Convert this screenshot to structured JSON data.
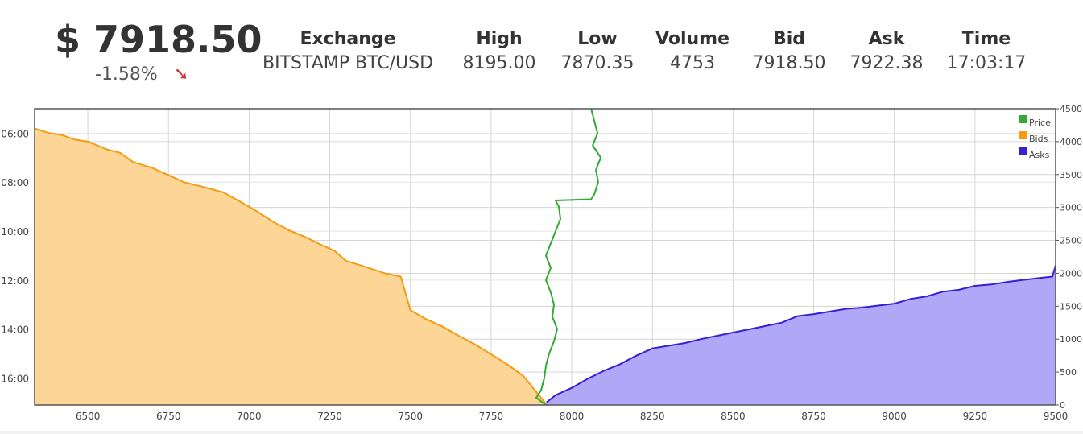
{
  "ticker": {
    "price": "$ 7918.50",
    "change": "-1.58%",
    "trend_icon": "down-arrow-icon",
    "trend_color": "#d0312d"
  },
  "stats": [
    {
      "label": "Exchange",
      "value": "BITSTAMP BTC/USD"
    },
    {
      "label": "High",
      "value": "8195.00"
    },
    {
      "label": "Low",
      "value": "7870.35"
    },
    {
      "label": "Volume",
      "value": "4753"
    },
    {
      "label": "Bid",
      "value": "7918.50"
    },
    {
      "label": "Ask",
      "value": "7922.38"
    },
    {
      "label": "Time",
      "value": "17:03:17"
    }
  ],
  "chart_data": {
    "type": "area",
    "x_axis": {
      "label": "",
      "min": 6335,
      "max": 9500,
      "ticks": [
        6500,
        6750,
        7000,
        7250,
        7500,
        7750,
        8000,
        8250,
        8500,
        8750,
        9000,
        9250,
        9500
      ]
    },
    "right_axis": {
      "label": "",
      "min": 0,
      "max": 4500,
      "ticks": [
        0,
        500,
        1000,
        1500,
        2000,
        2500,
        3000,
        3500,
        4000,
        4500
      ]
    },
    "left_axis": {
      "label": "",
      "time_min_hours": 5.0,
      "time_max_hours": 17.1,
      "ticks": [
        "06:00",
        "08:00",
        "10:00",
        "12:00",
        "14:00",
        "16:00"
      ],
      "tick_hours": [
        6,
        8,
        10,
        12,
        14,
        16
      ]
    },
    "grid": true,
    "legend": {
      "position": "top-right",
      "items": [
        {
          "name": "Price",
          "color": "#33aa33"
        },
        {
          "name": "Bids",
          "color": "#f39c12"
        },
        {
          "name": "Asks",
          "color": "#3a1fd6"
        }
      ]
    },
    "series": [
      {
        "name": "Bids",
        "color": "#f39c12",
        "fill": "#fdd597",
        "axis": "right",
        "points": [
          [
            6335,
            4200
          ],
          [
            6380,
            4130
          ],
          [
            6420,
            4100
          ],
          [
            6460,
            4030
          ],
          [
            6500,
            4000
          ],
          [
            6560,
            3880
          ],
          [
            6600,
            3830
          ],
          [
            6640,
            3690
          ],
          [
            6700,
            3600
          ],
          [
            6750,
            3490
          ],
          [
            6800,
            3380
          ],
          [
            6860,
            3310
          ],
          [
            6920,
            3230
          ],
          [
            6975,
            3080
          ],
          [
            7025,
            2940
          ],
          [
            7075,
            2780
          ],
          [
            7125,
            2650
          ],
          [
            7175,
            2550
          ],
          [
            7220,
            2440
          ],
          [
            7265,
            2340
          ],
          [
            7300,
            2190
          ],
          [
            7360,
            2100
          ],
          [
            7420,
            2000
          ],
          [
            7470,
            1950
          ],
          [
            7500,
            1440
          ],
          [
            7550,
            1300
          ],
          [
            7600,
            1190
          ],
          [
            7650,
            1050
          ],
          [
            7700,
            920
          ],
          [
            7750,
            770
          ],
          [
            7800,
            620
          ],
          [
            7850,
            440
          ],
          [
            7918,
            30
          ]
        ]
      },
      {
        "name": "Asks",
        "color": "#3a1fd6",
        "fill": "#b1a7f7",
        "axis": "right",
        "points": [
          [
            7922,
            40
          ],
          [
            7950,
            150
          ],
          [
            8000,
            260
          ],
          [
            8050,
            400
          ],
          [
            8100,
            520
          ],
          [
            8150,
            620
          ],
          [
            8200,
            750
          ],
          [
            8250,
            860
          ],
          [
            8300,
            900
          ],
          [
            8350,
            940
          ],
          [
            8400,
            1000
          ],
          [
            8450,
            1050
          ],
          [
            8500,
            1100
          ],
          [
            8550,
            1150
          ],
          [
            8600,
            1200
          ],
          [
            8650,
            1250
          ],
          [
            8700,
            1350
          ],
          [
            8750,
            1380
          ],
          [
            8800,
            1420
          ],
          [
            8850,
            1460
          ],
          [
            8900,
            1480
          ],
          [
            8950,
            1510
          ],
          [
            9000,
            1540
          ],
          [
            9050,
            1610
          ],
          [
            9100,
            1650
          ],
          [
            9150,
            1720
          ],
          [
            9200,
            1750
          ],
          [
            9250,
            1810
          ],
          [
            9300,
            1830
          ],
          [
            9350,
            1870
          ],
          [
            9400,
            1900
          ],
          [
            9450,
            1930
          ],
          [
            9490,
            1950
          ],
          [
            9500,
            2120
          ]
        ]
      },
      {
        "name": "Price",
        "color": "#33aa33",
        "axis": "left",
        "points": [
          [
            8060,
            5.0
          ],
          [
            8070,
            5.5
          ],
          [
            8080,
            6.0
          ],
          [
            8065,
            6.5
          ],
          [
            8090,
            7.0
          ],
          [
            8075,
            7.5
          ],
          [
            8082,
            8.0
          ],
          [
            8070,
            8.5
          ],
          [
            8060,
            8.7
          ],
          [
            7950,
            8.75
          ],
          [
            7960,
            9.0
          ],
          [
            7965,
            9.5
          ],
          [
            7950,
            10.0
          ],
          [
            7935,
            10.5
          ],
          [
            7920,
            11.0
          ],
          [
            7935,
            11.5
          ],
          [
            7920,
            12.0
          ],
          [
            7935,
            12.5
          ],
          [
            7945,
            13.0
          ],
          [
            7940,
            13.5
          ],
          [
            7955,
            14.0
          ],
          [
            7945,
            14.5
          ],
          [
            7930,
            15.0
          ],
          [
            7920,
            15.5
          ],
          [
            7915,
            16.0
          ],
          [
            7905,
            16.5
          ],
          [
            7890,
            16.8
          ],
          [
            7910,
            17.0
          ],
          [
            7922,
            17.1
          ]
        ]
      }
    ]
  }
}
